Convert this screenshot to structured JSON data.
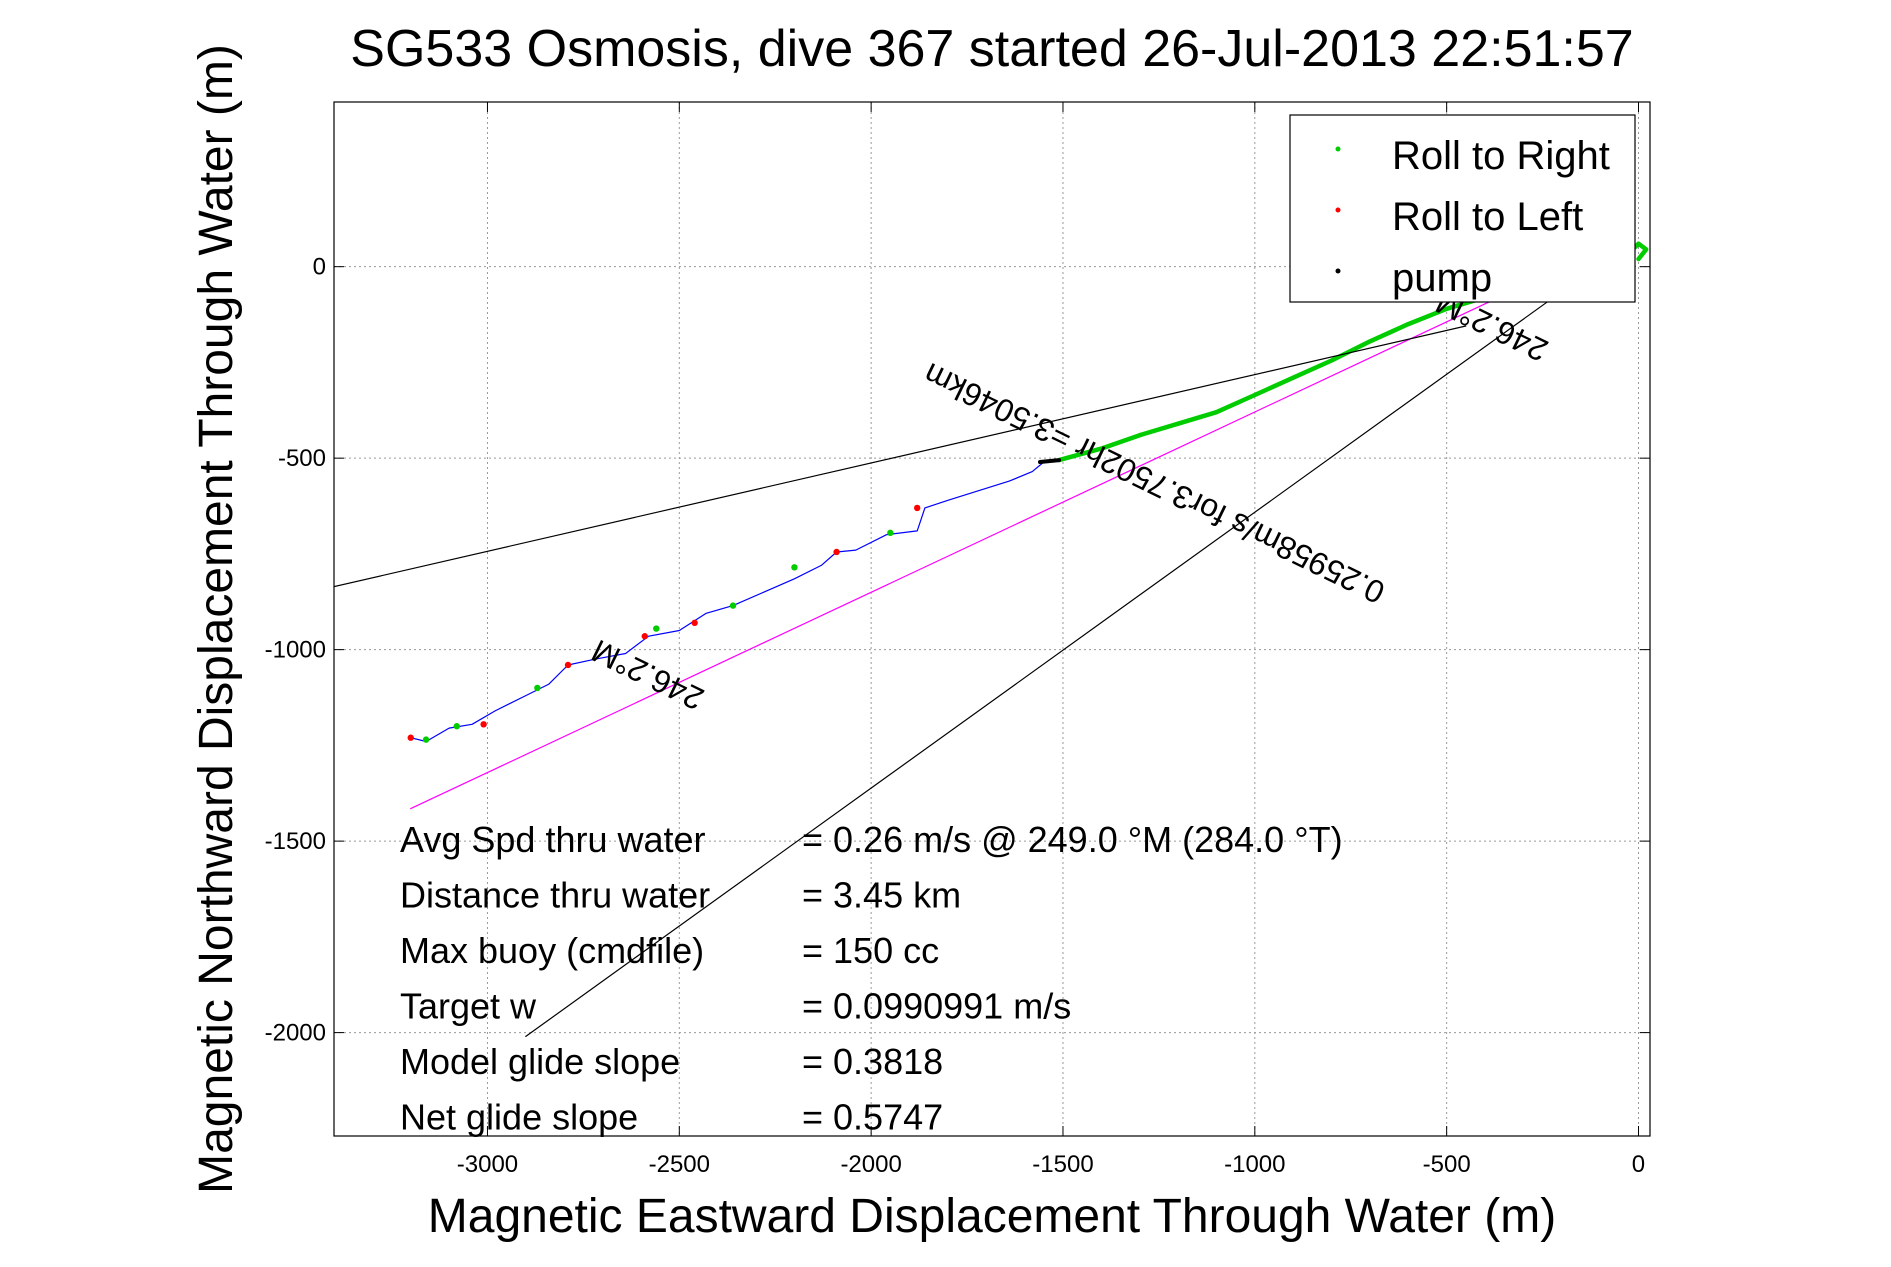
{
  "chart_data": {
    "type": "line",
    "title": "SG533 Osmosis, dive 367 started 26-Jul-2013 22:51:57",
    "xlabel": "Magnetic Eastward Displacement Through Water (m)",
    "ylabel": "Magnetic Northward Displacement Through Water (m)",
    "xlim": [
      -3400,
      30
    ],
    "ylim": [
      -2270,
      430
    ],
    "xticks": [
      -3000,
      -2500,
      -2000,
      -1500,
      -1000,
      -500,
      0
    ],
    "yticks": [
      0,
      -500,
      -1000,
      -1500,
      -2000
    ],
    "grid": true,
    "legend_position": "top-right",
    "legend": [
      {
        "label": "Roll to Right",
        "color": "#00cc00"
      },
      {
        "label": "Roll to Left",
        "color": "#ff0000"
      },
      {
        "label": "pump",
        "color": "#000000"
      }
    ],
    "series": [
      {
        "color": "#0000ff",
        "x": [
          -3200,
          -3160,
          -3100,
          -3040,
          -2980,
          -2900,
          -2840,
          -2790,
          -2720,
          -2640,
          -2580,
          -2500,
          -2430,
          -2360,
          -2280,
          -2200,
          -2130,
          -2090,
          -2040,
          -1960,
          -1880,
          -1860,
          -1800,
          -1720,
          -1640,
          -1580,
          -1550,
          -1510
        ],
        "y": [
          -1230,
          -1240,
          -1205,
          -1195,
          -1160,
          -1120,
          -1090,
          -1040,
          -1025,
          -1010,
          -965,
          -950,
          -905,
          -885,
          -850,
          -815,
          -780,
          -745,
          -740,
          -700,
          -690,
          -630,
          -610,
          -585,
          -560,
          -535,
          -510,
          -505
        ]
      },
      {
        "name": "Roll to Right",
        "color": "#00cc00",
        "x": [
          -1510,
          -1400,
          -1300,
          -1200,
          -1100,
          -1000,
          -900,
          -800,
          -700,
          -600,
          -500,
          -400,
          -300,
          -200,
          -100,
          -30,
          0,
          20,
          0
        ],
        "y": [
          -505,
          -475,
          -440,
          -410,
          -380,
          -335,
          -290,
          -245,
          -195,
          -150,
          -110,
          -80,
          -50,
          -20,
          10,
          30,
          60,
          45,
          20
        ]
      },
      {
        "name": "Roll to Right",
        "color": "#00cc00",
        "x": [
          -3160,
          -3080,
          -2870,
          -2560,
          -2360,
          -2200,
          -1950
        ],
        "y": [
          -1235,
          -1200,
          -1100,
          -945,
          -885,
          -785,
          -695
        ]
      },
      {
        "name": "Roll to Left",
        "color": "#ff0000",
        "x": [
          -3200,
          -3010,
          -2790,
          -2590,
          -2460,
          -2090,
          -1880
        ],
        "y": [
          -1230,
          -1195,
          -1040,
          -965,
          -930,
          -745,
          -630
        ]
      },
      {
        "name": "pump",
        "color": "#000000",
        "x": [
          -1560,
          -1510
        ],
        "y": [
          -510,
          -505
        ]
      },
      {
        "color": "#ff00ff",
        "x": [
          -3200,
          -300
        ],
        "y": [
          -1415,
          -50
        ]
      },
      {
        "color": "#000000",
        "x": [
          -3420,
          -450
        ],
        "y": [
          -840,
          -155
        ]
      },
      {
        "color": "#000000",
        "x": [
          -2900,
          -110
        ],
        "y": [
          -2010,
          0
        ]
      }
    ],
    "annotations": [
      {
        "text": "246.2°M",
        "x": -2570,
        "y": -1040,
        "rotation_deg": 206
      },
      {
        "text": "246.2°M",
        "x": -370,
        "y": -130,
        "rotation_deg": 206
      },
      {
        "text": "0.25958m/s for3.7502hr =3.5046km",
        "x": -1250,
        "y": -540,
        "rotation_deg": 206
      }
    ],
    "info_box": [
      {
        "label": "Avg Spd thru water",
        "value": "=  0.26 m/s @ 249.0 °M (284.0 °T)"
      },
      {
        "label": "Distance thru water",
        "value": "=  3.45 km"
      },
      {
        "label": "Max buoy (cmdfile)",
        "value": "= 150 cc"
      },
      {
        "label": "Target w",
        "value": "= 0.0990991 m/s"
      },
      {
        "label": "Model glide slope",
        "value": "= 0.3818"
      },
      {
        "label": "Net glide slope",
        "value": "= 0.5747"
      }
    ]
  }
}
